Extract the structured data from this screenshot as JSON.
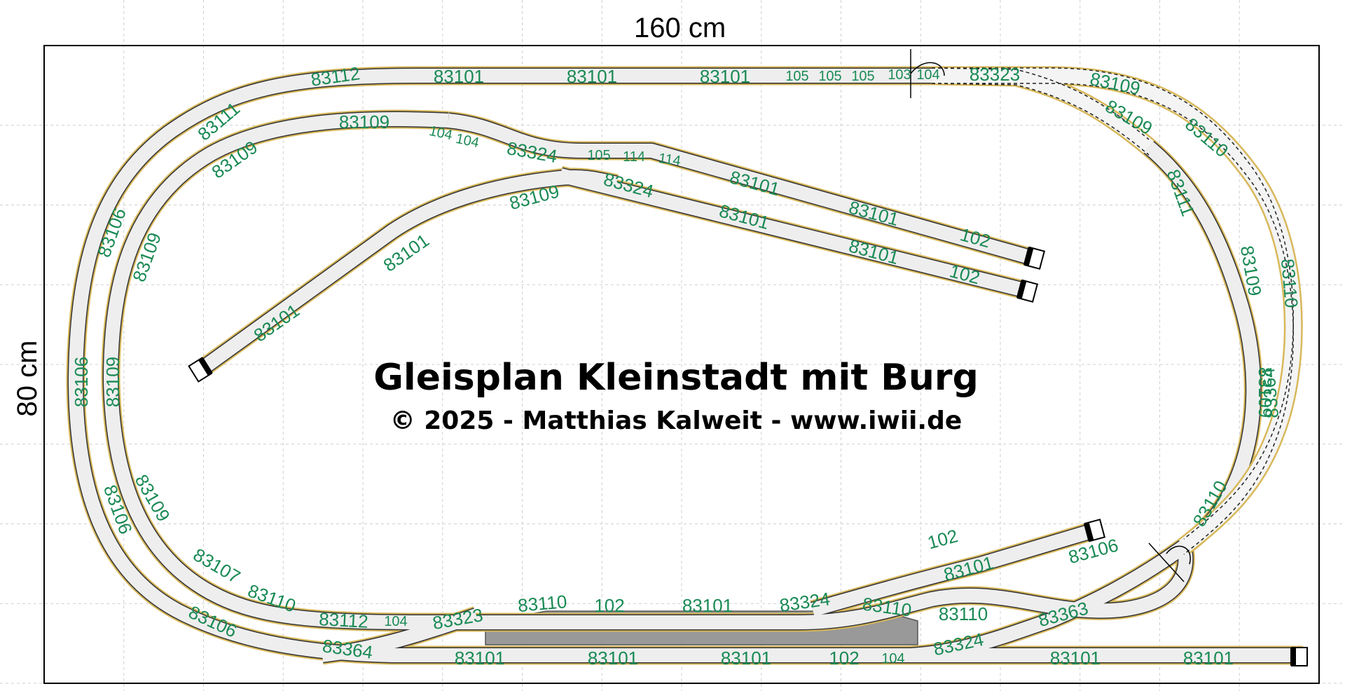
{
  "dimensions": {
    "width_label": "160 cm",
    "height_label": "80 cm"
  },
  "title": "Gleisplan Kleinstadt mit Burg",
  "subtitle": "© 2025 - Matthias Kalweit - www.iwii.de",
  "colors": {
    "label": "#1a8a55",
    "track_border": "#d8b85a",
    "track_fill": "#eeeeee",
    "platform": "#999999"
  },
  "track_labels": [
    "83112",
    "83101",
    "83101",
    "83101",
    "105",
    "105",
    "105",
    "103",
    "104",
    "83323",
    "83109",
    "83111",
    "83109",
    "104",
    "104",
    "83324",
    "105",
    "114",
    "114",
    "83101",
    "83101",
    "102",
    "83106",
    "83109",
    "83109",
    "83324",
    "83101",
    "83101",
    "102",
    "83109",
    "83101",
    "83101",
    "83106",
    "83109",
    "83106",
    "83109",
    "83107",
    "83110",
    "83112",
    "104",
    "83323",
    "83110",
    "102",
    "83101",
    "83324",
    "83110",
    "83110",
    "83363",
    "83106",
    "83364",
    "83101",
    "83101",
    "83101",
    "102",
    "104",
    "83324",
    "83101",
    "83101",
    "83101",
    "102",
    "83106",
    "83109",
    "83110",
    "83111",
    "83109",
    "83110",
    "83109",
    "83364",
    "83110"
  ]
}
